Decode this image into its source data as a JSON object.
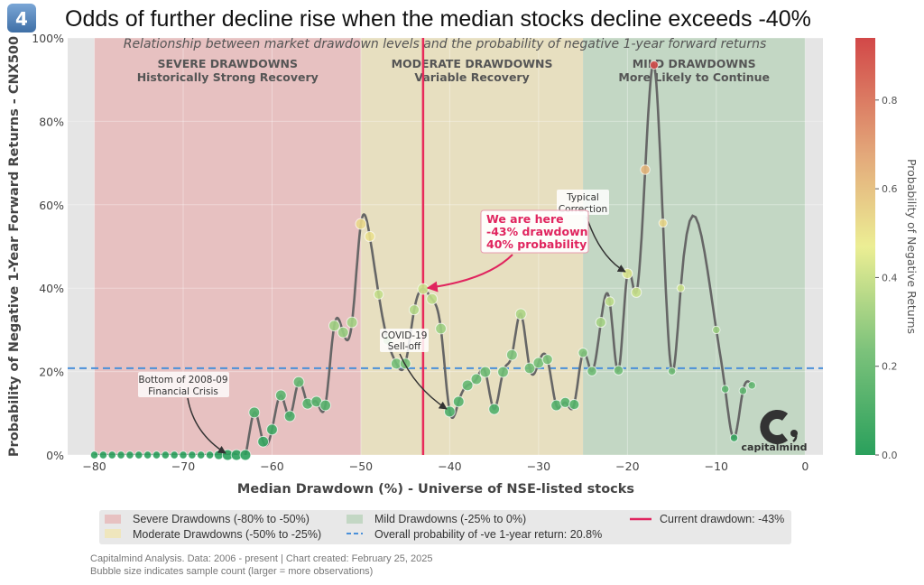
{
  "badge": "4",
  "title": "Odds of further decline rise when the median stocks decline exceeds -40%",
  "chart_data": {
    "type": "scatter",
    "subtitle": "Relationship between market drawdown levels and the probability of negative 1-year forward returns",
    "xlabel": "Median Drawdown (%) - Universe of NSE-listed stocks",
    "ylabel": "Probability of Negative 1-Year Forward Returns - CNX500",
    "xlim": [
      -83,
      2
    ],
    "ylim": [
      0,
      100
    ],
    "x_ticks": [
      "−80",
      "−70",
      "−60",
      "−50",
      "−40",
      "−30",
      "−20",
      "−10",
      "0"
    ],
    "x_tick_values": [
      -80,
      -70,
      -60,
      -50,
      -40,
      -30,
      -20,
      -10,
      0
    ],
    "y_ticks": [
      "0%",
      "20%",
      "40%",
      "60%",
      "80%",
      "100%"
    ],
    "y_tick_values": [
      0,
      20,
      40,
      60,
      80,
      100
    ],
    "x": [
      -80,
      -79,
      -78,
      -77,
      -76,
      -75,
      -74,
      -73,
      -72,
      -71,
      -70,
      -69,
      -68,
      -67,
      -66,
      -65,
      -64,
      -63,
      -62,
      -61,
      -60,
      -59,
      -58,
      -57,
      -56,
      -55,
      -54,
      -53,
      -52,
      -51,
      -50,
      -49,
      -48,
      -47,
      -46,
      -45,
      -44,
      -43,
      -42,
      -41,
      -40,
      -39,
      -38,
      -37,
      -36,
      -35,
      -34,
      -33,
      -32,
      -31,
      -30,
      -29,
      -28,
      -27,
      -26,
      -25,
      -24,
      -23,
      -22,
      -21,
      -20,
      -19,
      -18,
      -17,
      -16,
      -15,
      -14,
      -10,
      -9,
      -8,
      -7,
      -6
    ],
    "y": [
      0,
      0,
      0,
      0,
      0,
      0,
      0,
      0,
      0,
      0,
      0,
      0,
      0,
      0,
      0,
      0,
      0,
      0,
      10.2,
      3.2,
      6.1,
      14.3,
      9.3,
      17.5,
      12.3,
      12.8,
      11.9,
      31,
      29.4,
      31.8,
      55.4,
      52.4,
      38.5,
      27.5,
      21.9,
      21.9,
      34.8,
      39.8,
      37.4,
      30.3,
      10.4,
      12.8,
      16.7,
      18.2,
      19.9,
      11,
      19.9,
      24,
      33.8,
      20.8,
      22.1,
      22.9,
      11.9,
      12.6,
      12.1,
      24.5,
      20.1,
      31.8,
      36.8,
      20.3,
      43.5,
      39,
      68.4,
      93.5,
      55.6,
      20.1,
      40,
      30,
      15.8,
      4.1,
      15.4,
      16.7
    ],
    "bubble_size": [
      1,
      1,
      1,
      1,
      1,
      1,
      1,
      1,
      1,
      1,
      1,
      1,
      1,
      1,
      1.5,
      2,
      2,
      2,
      2,
      2,
      2,
      2,
      2,
      2,
      2,
      2,
      2,
      2,
      2,
      2,
      2,
      1.8,
      1.6,
      1.6,
      2,
      2,
      1.8,
      2,
      2,
      2,
      2,
      2,
      2,
      2,
      2,
      2,
      2,
      2,
      2,
      2,
      2,
      1.8,
      2,
      1.8,
      1.8,
      1.6,
      1.6,
      1.8,
      1.6,
      1.6,
      1.8,
      1.8,
      1.6,
      1.2,
      1.2,
      1,
      1,
      1,
      1,
      1,
      1,
      1,
      1
    ],
    "colorbar": {
      "label": "Probability of Negative Returns",
      "ticks": [
        "0.0",
        "0.2",
        "0.4",
        "0.6",
        "0.8"
      ],
      "tick_values": [
        0,
        0.2,
        0.4,
        0.6,
        0.8
      ],
      "range": [
        0,
        0.94
      ],
      "colormap": [
        "#2aa05c",
        "#7cc27b",
        "#ecee94",
        "#e3b07a",
        "#d24848"
      ]
    },
    "regions": [
      {
        "title": "SEVERE DRAWDOWNS",
        "subtitle": "Historically Strong Recovery",
        "from": -80,
        "to": -50,
        "color": "#e7c1c1"
      },
      {
        "title": "MODERATE DRAWDOWNS",
        "subtitle": "Variable Recovery",
        "from": -50,
        "to": -25,
        "color": "#e7dfc0"
      },
      {
        "title": "MILD DRAWDOWNS",
        "subtitle": "More Likely to Continue",
        "from": -25,
        "to": 0,
        "color": "#c3d7c4"
      }
    ],
    "overall_probability": 20.8,
    "current_drawdown": -43,
    "annotations": {
      "here": [
        "We are here",
        "-43% drawdown",
        "40% probability"
      ],
      "typical": [
        "Typical",
        "Correction"
      ],
      "covid": [
        "COVID-19",
        "Sell-off"
      ],
      "gfc": [
        "Bottom of 2008-09",
        "Financial Crisis"
      ]
    },
    "grid": true,
    "legend_position": "bottom",
    "legend": [
      "Severe Drawdowns (-80% to -50%)",
      "Moderate Drawdowns (-50% to -25%)",
      "Mild Drawdowns (-25% to 0%)",
      "Overall probability of -ve 1-year return: 20.8%",
      "Current drawdown: -43%"
    ]
  },
  "logo": "capitalmind",
  "footer": [
    "Capitalmind Analysis. Data: 2006 - present | Chart created: February 25, 2025",
    "Bubble size indicates sample count (larger = more observations)"
  ],
  "colors": {
    "current_line": "#e8295a",
    "overall_line": "#4a90d9",
    "curve": "#666666",
    "plot_bg": "#e5e5e5"
  }
}
